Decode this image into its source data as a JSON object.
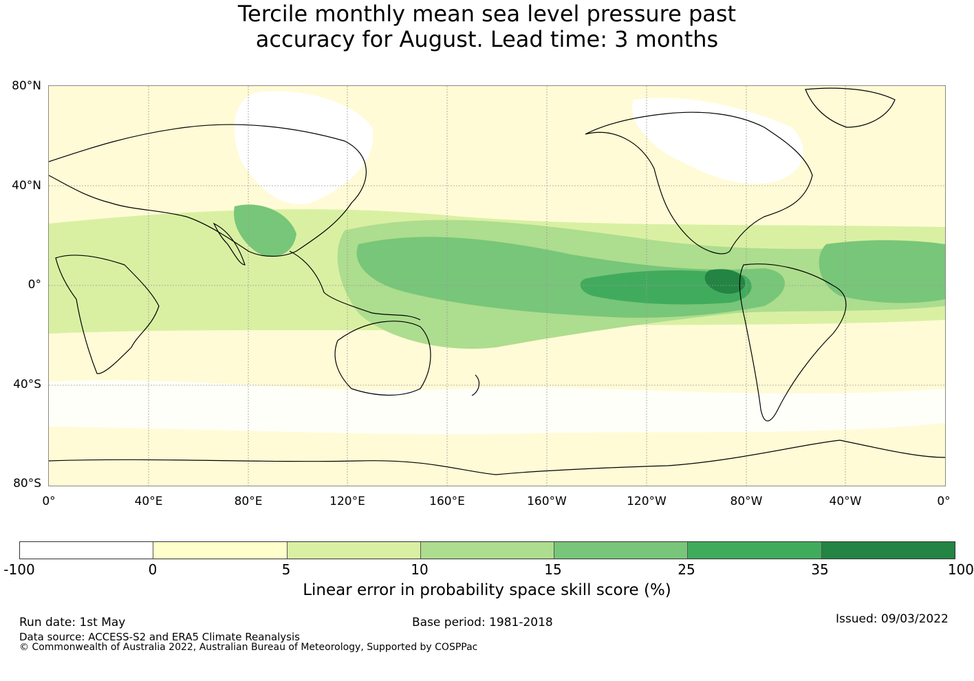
{
  "title": {
    "line1": "Tercile monthly mean sea level pressure past",
    "line2": "accuracy for August. Lead time: 3 months"
  },
  "map": {
    "lat_labels": [
      "80°N",
      "40°N",
      "0°",
      "40°S",
      "80°S"
    ],
    "lon_labels": [
      "0°",
      "40°E",
      "80°E",
      "120°E",
      "160°E",
      "160°W",
      "120°W",
      "80°W",
      "40°W",
      "0°"
    ],
    "land_color": "#000000",
    "regions": [
      {
        "name": "tropical-pacific-band",
        "category": "15-25"
      },
      {
        "name": "eastern-equatorial-pacific",
        "category": "25-35"
      },
      {
        "name": "maritime-continent",
        "category": "15-25"
      },
      {
        "name": "bay-of-bengal",
        "category": "15-25"
      },
      {
        "name": "tropical-atlantic",
        "category": "15-25"
      },
      {
        "name": "north-asia",
        "category": "-100-0"
      },
      {
        "name": "north-america",
        "category": "-100-0"
      }
    ]
  },
  "colorbar": {
    "ticks": [
      "-100",
      "0",
      "5",
      "10",
      "15",
      "25",
      "35",
      "100"
    ],
    "colors": [
      "#ffffff",
      "#ffffcc",
      "#d9f0a3",
      "#addd8e",
      "#78c679",
      "#41ab5d",
      "#238443"
    ],
    "label": "Linear error in probability space skill score (%)"
  },
  "footer": {
    "run_date": "Run date: 1st May",
    "base_period": "Base period: 1981-2018",
    "issued": "Issued: 09/03/2022",
    "data_source": "Data source: ACCESS-S2 and ERA5 Climate Reanalysis",
    "copyright": "© Commonwealth of Australia 2022, Australian Bureau of Meteorology, Supported by COSPPac"
  }
}
